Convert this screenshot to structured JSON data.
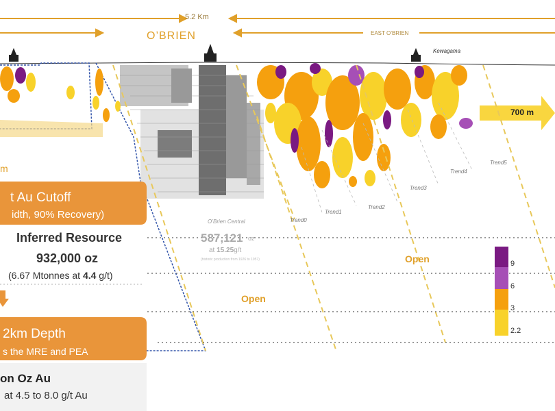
{
  "header": {
    "scale_label": "5.2 Km",
    "obrien_label": "O’BRIEN",
    "east_obrien_label": "EAST O’BRIEN",
    "kewagama_label": "Kewagama",
    "depth_label": "700 m",
    "left_partial_label": "m"
  },
  "trends": [
    "Trend0",
    "Trend1",
    "Trend2",
    "Trend3",
    "Trend4",
    "Trend5"
  ],
  "obrien_central": {
    "title": "O’Brien Central",
    "ounces": "587,121",
    "ounces_unit": "oz",
    "grade_prefix": "at",
    "grade_value": "15.25",
    "grade_unit": "g/t",
    "note": "(historic production from 1926 to 1957)"
  },
  "open_labels": [
    "Open",
    "Open"
  ],
  "legend": {
    "values": [
      "9",
      "6",
      "3",
      "2.2"
    ],
    "colors": [
      "#7a1a82",
      "#a64fb6",
      "#f5a00e",
      "#f8d22a"
    ]
  },
  "panel": {
    "box1_title": "t Au Cutoff",
    "box1_subtitle": "idth, 90% Recovery)",
    "inferred_title": "Inferred Resource",
    "inferred_oz": "932,000 oz",
    "inferred_mt_prefix": "(6.67 Mtonnes at ",
    "inferred_grade": "4.4",
    "inferred_mt_suffix": " g/t)",
    "box2_title": "2km Depth",
    "box2_subtitle": "s the MRE and PEA",
    "oz_title": "on Oz Au",
    "oz_subtitle": "at 4.5 to 8.0 g/t Au"
  },
  "colors": {
    "accent_orange": "#e9953a",
    "gold": "#e0a02a",
    "purple": "#7a1a82",
    "yellow": "#f8d22a"
  }
}
